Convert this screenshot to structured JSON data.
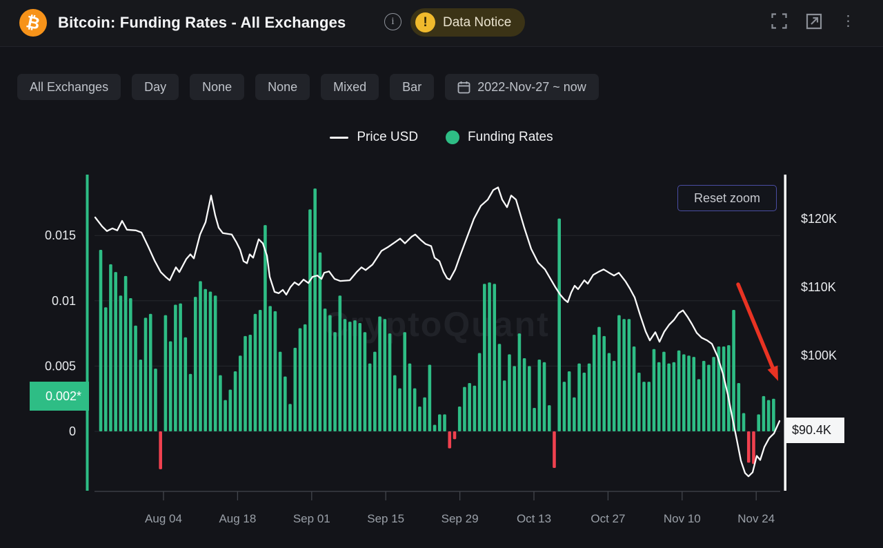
{
  "header": {
    "title": "Bitcoin: Funding Rates - All Exchanges",
    "coin_symbol": "₿",
    "info_glyph": "i",
    "data_notice": {
      "label": "Data Notice",
      "warn_glyph": "!"
    },
    "kebab_glyph": "⋮"
  },
  "filters": [
    "All Exchanges",
    "Day",
    "None",
    "None",
    "Mixed",
    "Bar"
  ],
  "date_range": "2022-Nov-27 ~ now",
  "legend": [
    {
      "label": "Price USD",
      "color": "#fafafa"
    },
    {
      "label": "Funding Rates",
      "color": "#2ebd85"
    }
  ],
  "chart": {
    "reset_zoom_label": "Reset zoom",
    "watermark": "CryptoQuant",
    "highlight_left_label": "0.002*",
    "last_price_label": "$90.4K"
  },
  "chart_data": {
    "type": "bar",
    "title": "Bitcoin: Funding Rates - All Exchanges",
    "x_ticks": [
      "Aug 04",
      "Aug 18",
      "Sep 01",
      "Sep 15",
      "Sep 29",
      "Oct 13",
      "Oct 27",
      "Nov 10",
      "Nov 24"
    ],
    "left_axis": {
      "name": "Funding Rates",
      "tick_values": [
        0,
        0.005,
        0.01,
        0.015
      ],
      "tick_labels": [
        "0",
        "0.005",
        "0.01",
        "0.015"
      ],
      "highlight_value": 0.002,
      "highlight_label": "0.002*"
    },
    "right_axis": {
      "name": "Price USD",
      "tick_values": [
        100,
        110,
        120
      ],
      "tick_labels": [
        "$100K",
        "$110K",
        "$120K"
      ],
      "last_value": 90.4,
      "last_label": "$90.4K"
    },
    "colors": {
      "bar_positive": "#2ebd85",
      "bar_negative": "#f0414f",
      "price_line": "#fafafa",
      "arrow": "#e93323",
      "grid": "#26282e",
      "axis_text": "#e9ebee",
      "date_text": "#9aa0a8",
      "baseline": "#43464d"
    },
    "series": [
      {
        "name": "Funding Rates",
        "type": "bar",
        "values": [
          0.0139,
          0.0095,
          0.0128,
          0.0122,
          0.0104,
          0.0119,
          0.0102,
          0.0081,
          0.0055,
          0.0087,
          0.009,
          0.0048,
          -0.0029,
          0.0089,
          0.0069,
          0.0097,
          0.0098,
          0.0072,
          0.0044,
          0.0103,
          0.0115,
          0.0109,
          0.0107,
          0.0104,
          0.0043,
          0.0024,
          0.0032,
          0.0046,
          0.0058,
          0.0073,
          0.0074,
          0.009,
          0.0093,
          0.0158,
          0.0096,
          0.0092,
          0.0061,
          0.0042,
          0.0021,
          0.0064,
          0.0079,
          0.0082,
          0.017,
          0.0186,
          0.0137,
          0.0094,
          0.0089,
          0.0076,
          0.0104,
          0.0086,
          0.0084,
          0.0085,
          0.0083,
          0.0076,
          0.0052,
          0.0061,
          0.0088,
          0.0086,
          0.0075,
          0.0043,
          0.0033,
          0.0076,
          0.0052,
          0.0033,
          0.0019,
          0.0026,
          0.0051,
          0.0005,
          0.0013,
          0.0013,
          -0.0013,
          -0.0006,
          0.0019,
          0.0034,
          0.0037,
          0.0035,
          0.006,
          0.0113,
          0.0114,
          0.0113,
          0.0067,
          0.0039,
          0.0059,
          0.005,
          0.0075,
          0.0056,
          0.005,
          0.0018,
          0.0055,
          0.0053,
          0.002,
          -0.0028,
          0.0163,
          0.0038,
          0.0046,
          0.0026,
          0.0052,
          0.0045,
          0.0052,
          0.0074,
          0.008,
          0.0073,
          0.006,
          0.0054,
          0.0089,
          0.0086,
          0.0086,
          0.0065,
          0.0045,
          0.0038,
          0.0038,
          0.0063,
          0.0053,
          0.0061,
          0.0052,
          0.0053,
          0.0062,
          0.0059,
          0.0058,
          0.0057,
          0.004,
          0.0054,
          0.0051,
          0.0057,
          0.0065,
          0.0065,
          0.0066,
          0.0093,
          0.0037,
          0.0014,
          -0.0024,
          -0.0025,
          0.0013,
          0.0027,
          0.0024,
          0.0025
        ]
      },
      {
        "name": "Price USD",
        "type": "line",
        "unit": "K USD",
        "points": [
          [
            138,
            120.2
          ],
          [
            148,
            118.9
          ],
          [
            155,
            118.2
          ],
          [
            163,
            118.6
          ],
          [
            170,
            118.3
          ],
          [
            177,
            119.7
          ],
          [
            184,
            118.4
          ],
          [
            197,
            118.3
          ],
          [
            205,
            118.0
          ],
          [
            215,
            115.9
          ],
          [
            224,
            113.9
          ],
          [
            233,
            112.2
          ],
          [
            240,
            111.5
          ],
          [
            246,
            111.0
          ],
          [
            255,
            112.9
          ],
          [
            260,
            112.2
          ],
          [
            270,
            114.1
          ],
          [
            276,
            114.8
          ],
          [
            281,
            114.2
          ],
          [
            290,
            117.7
          ],
          [
            298,
            119.5
          ],
          [
            306,
            123.4
          ],
          [
            312,
            120.5
          ],
          [
            317,
            118.7
          ],
          [
            323,
            117.9
          ],
          [
            336,
            117.7
          ],
          [
            343,
            116.5
          ],
          [
            348,
            115.5
          ],
          [
            353,
            113.8
          ],
          [
            358,
            113.5
          ],
          [
            362,
            114.8
          ],
          [
            367,
            114.3
          ],
          [
            375,
            117.0
          ],
          [
            381,
            116.4
          ],
          [
            387,
            114.6
          ],
          [
            391,
            111.5
          ],
          [
            398,
            109.3
          ],
          [
            404,
            109.1
          ],
          [
            410,
            109.6
          ],
          [
            415,
            108.9
          ],
          [
            421,
            110.0
          ],
          [
            427,
            110.7
          ],
          [
            433,
            110.3
          ],
          [
            440,
            111.1
          ],
          [
            447,
            110.6
          ],
          [
            453,
            111.5
          ],
          [
            460,
            111.7
          ],
          [
            466,
            111.2
          ],
          [
            470,
            112.1
          ],
          [
            477,
            112.3
          ],
          [
            485,
            111.2
          ],
          [
            493,
            110.9
          ],
          [
            507,
            111.0
          ],
          [
            517,
            112.2
          ],
          [
            524,
            112.9
          ],
          [
            530,
            112.5
          ],
          [
            540,
            113.3
          ],
          [
            553,
            115.3
          ],
          [
            563,
            115.9
          ],
          [
            573,
            116.6
          ],
          [
            580,
            117.1
          ],
          [
            587,
            116.4
          ],
          [
            597,
            117.4
          ],
          [
            602,
            117.7
          ],
          [
            610,
            116.9
          ],
          [
            617,
            116.3
          ],
          [
            625,
            116.0
          ],
          [
            630,
            114.3
          ],
          [
            637,
            113.8
          ],
          [
            643,
            112.2
          ],
          [
            648,
            111.3
          ],
          [
            652,
            111.1
          ],
          [
            660,
            112.6
          ],
          [
            667,
            114.6
          ],
          [
            677,
            117.3
          ],
          [
            687,
            120.0
          ],
          [
            697,
            121.9
          ],
          [
            707,
            122.8
          ],
          [
            715,
            124.2
          ],
          [
            722,
            124.6
          ],
          [
            728,
            122.8
          ],
          [
            735,
            121.7
          ],
          [
            741,
            123.4
          ],
          [
            748,
            122.8
          ],
          [
            760,
            118.7
          ],
          [
            770,
            115.6
          ],
          [
            780,
            113.6
          ],
          [
            790,
            112.6
          ],
          [
            798,
            111.2
          ],
          [
            805,
            110.0
          ],
          [
            812,
            108.9
          ],
          [
            818,
            108.2
          ],
          [
            823,
            107.8
          ],
          [
            828,
            109.2
          ],
          [
            833,
            110.2
          ],
          [
            838,
            109.7
          ],
          [
            847,
            111.0
          ],
          [
            852,
            110.5
          ],
          [
            860,
            111.8
          ],
          [
            867,
            112.2
          ],
          [
            875,
            112.6
          ],
          [
            883,
            112.1
          ],
          [
            890,
            111.7
          ],
          [
            897,
            112.1
          ],
          [
            907,
            110.8
          ],
          [
            913,
            109.8
          ],
          [
            920,
            108.5
          ],
          [
            928,
            105.9
          ],
          [
            936,
            103.5
          ],
          [
            942,
            102.2
          ],
          [
            950,
            103.4
          ],
          [
            956,
            102.0
          ],
          [
            963,
            103.5
          ],
          [
            970,
            104.5
          ],
          [
            977,
            105.2
          ],
          [
            984,
            106.2
          ],
          [
            990,
            106.6
          ],
          [
            997,
            105.6
          ],
          [
            1003,
            104.6
          ],
          [
            1010,
            103.3
          ],
          [
            1017,
            102.6
          ],
          [
            1025,
            102.2
          ],
          [
            1032,
            101.7
          ],
          [
            1040,
            99.9
          ],
          [
            1048,
            97.3
          ],
          [
            1055,
            94.3
          ],
          [
            1062,
            90.7
          ],
          [
            1068,
            87.7
          ],
          [
            1074,
            84.6
          ],
          [
            1080,
            82.8
          ],
          [
            1085,
            82.3
          ],
          [
            1091,
            82.9
          ],
          [
            1097,
            85.3
          ],
          [
            1102,
            84.7
          ],
          [
            1108,
            86.6
          ],
          [
            1115,
            87.9
          ],
          [
            1122,
            88.6
          ],
          [
            1130,
            90.4
          ]
        ]
      }
    ],
    "annotations": {
      "arrow": {
        "from": [
          1070,
          412
        ],
        "to": [
          1128,
          552
        ]
      }
    }
  }
}
